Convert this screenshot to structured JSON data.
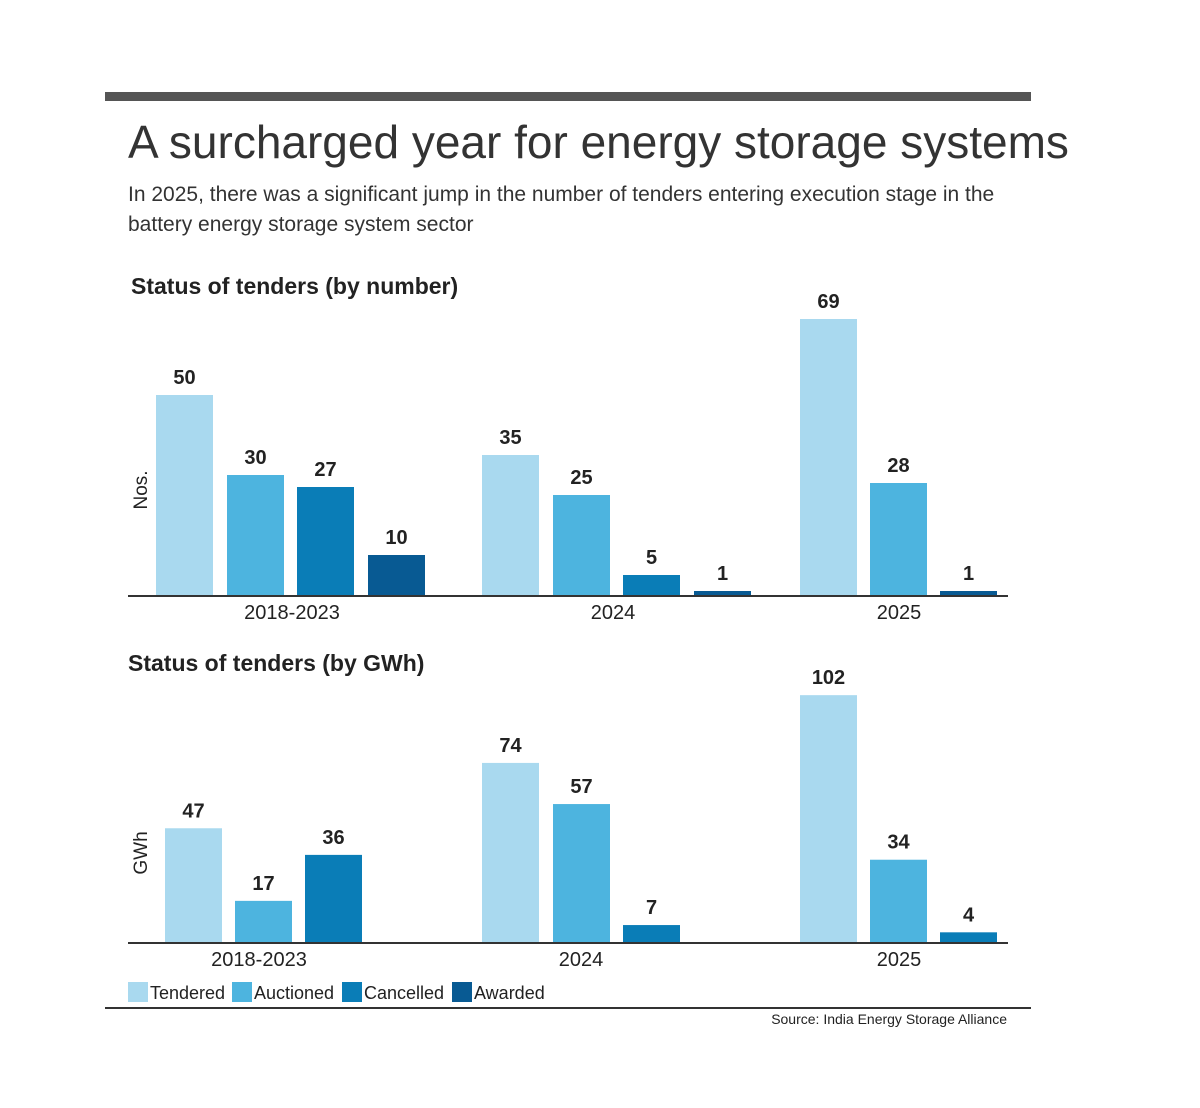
{
  "title": "A surcharged year for energy storage systems",
  "subtitle_lines": [
    "In 2025, there was a significant jump in the number of tenders entering execution stage in the",
    "battery energy storage system sector"
  ],
  "source": "Source: India Energy Storage Alliance",
  "legend": [
    {
      "name": "Tendered",
      "color": "#a9d9ef"
    },
    {
      "name": "Auctioned",
      "color": "#4db4df"
    },
    {
      "name": "Cancelled",
      "color": "#0a7db7"
    },
    {
      "name": "Awarded",
      "color": "#085a93"
    }
  ],
  "chart_data": [
    {
      "type": "bar",
      "title": "Status of tenders (by number)",
      "ylabel": "Nos.",
      "xlabel": "",
      "categories": [
        "2018-2023",
        "2024",
        "2025"
      ],
      "bars": [
        [
          {
            "series": "Tendered",
            "value": 50
          },
          {
            "series": "Auctioned",
            "value": 30
          },
          {
            "series": "Cancelled",
            "value": 27
          },
          {
            "series": "Awarded",
            "value": 10
          }
        ],
        [
          {
            "series": "Tendered",
            "value": 35
          },
          {
            "series": "Auctioned",
            "value": 25
          },
          {
            "series": "Cancelled",
            "value": 5
          },
          {
            "series": "Awarded",
            "value": 1
          }
        ],
        [
          {
            "series": "Tendered",
            "value": 69
          },
          {
            "series": "Auctioned",
            "value": 28
          },
          {
            "series": "Awarded",
            "value": 1
          }
        ]
      ],
      "ylim": [
        0,
        69
      ],
      "grid": false
    },
    {
      "type": "bar",
      "title": "Status of tenders (by GWh)",
      "ylabel": "GWh",
      "xlabel": "",
      "categories": [
        "2018-2023",
        "2024",
        "2025"
      ],
      "bars": [
        [
          {
            "series": "Tendered",
            "value": 47
          },
          {
            "series": "Auctioned",
            "value": 17
          },
          {
            "series": "Cancelled",
            "value": 36
          }
        ],
        [
          {
            "series": "Tendered",
            "value": 74
          },
          {
            "series": "Auctioned",
            "value": 57
          },
          {
            "series": "Cancelled",
            "value": 7
          }
        ],
        [
          {
            "series": "Tendered",
            "value": 102
          },
          {
            "series": "Auctioned",
            "value": 34
          },
          {
            "series": "Cancelled",
            "value": 4
          }
        ]
      ],
      "ylim": [
        0,
        102
      ],
      "grid": false,
      "legend_position": "bottom-left"
    }
  ]
}
